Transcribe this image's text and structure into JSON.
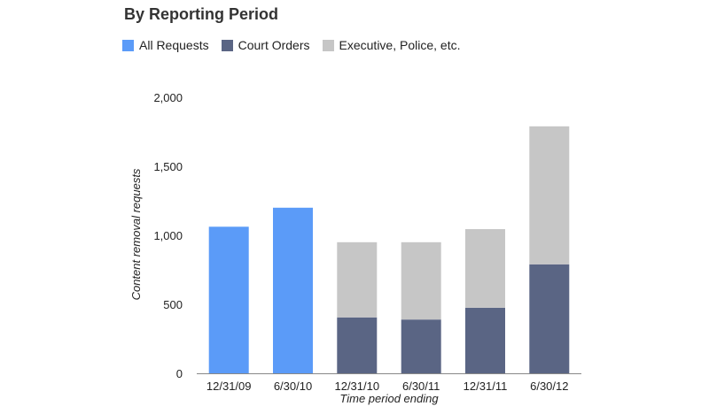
{
  "chart_data": {
    "type": "bar",
    "stacked": true,
    "title": "By Reporting Period",
    "xlabel": "Time period ending",
    "ylabel": "Content removal requests",
    "ylim": [
      0,
      2000
    ],
    "yticks": [
      "0",
      "500",
      "1,000",
      "1,500",
      "2,000"
    ],
    "ytick_values": [
      0,
      500,
      1000,
      1500,
      2000
    ],
    "categories": [
      "12/31/09",
      "6/30/10",
      "12/31/10",
      "6/30/11",
      "12/31/11",
      "6/30/12"
    ],
    "series": [
      {
        "name": "All Requests",
        "color": "#5b9bf8",
        "values": [
          1062,
          1200,
          0,
          0,
          0,
          0
        ]
      },
      {
        "name": "Court Orders",
        "color": "#5a6584",
        "values": [
          0,
          0,
          405,
          390,
          475,
          790
        ]
      },
      {
        "name": "Executive, Police, etc.",
        "color": "#c6c6c6",
        "values": [
          0,
          0,
          545,
          560,
          570,
          1000
        ]
      }
    ],
    "legend_position": "top-left",
    "grid": false
  }
}
